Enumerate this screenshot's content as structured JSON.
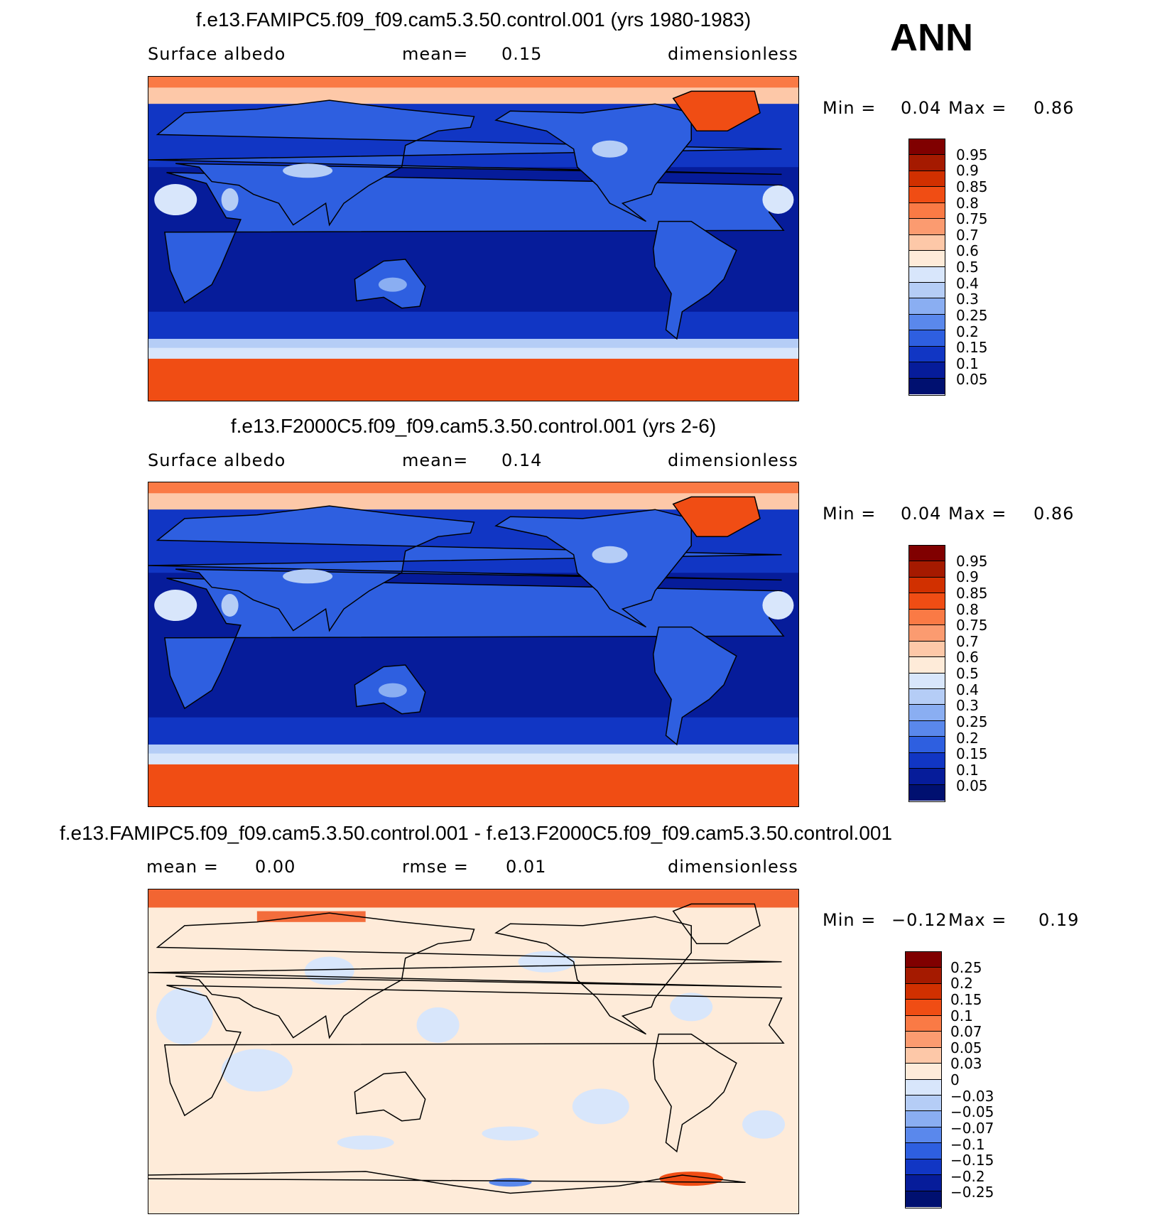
{
  "season": "ANN",
  "panels": [
    {
      "title": "f.e13.FAMIPC5.f09_f09.cam5.3.50.control.001 (yrs 1980-1983)",
      "left_label": "Surface  albedo",
      "mid_label": "mean=",
      "mid_value": "0.15",
      "right_label": "dimensionless",
      "min_label": "Min  =",
      "min_value": "0.04",
      "max_label": "Max  =",
      "max_value": "0.86",
      "colorbar_labels": [
        "0.95",
        "0.9",
        "0.85",
        "0.8",
        "0.75",
        "0.7",
        "0.6",
        "0.5",
        "0.4",
        "0.3",
        "0.25",
        "0.2",
        "0.15",
        "0.1",
        "0.05"
      ]
    },
    {
      "title": "f.e13.F2000C5.f09_f09.cam5.3.50.control.001 (yrs 2-6)",
      "left_label": "Surface  albedo",
      "mid_label": "mean=",
      "mid_value": "0.14",
      "right_label": "dimensionless",
      "min_label": "Min  =",
      "min_value": "0.04",
      "max_label": "Max  =",
      "max_value": "0.86",
      "colorbar_labels": [
        "0.95",
        "0.9",
        "0.85",
        "0.8",
        "0.75",
        "0.7",
        "0.6",
        "0.5",
        "0.4",
        "0.3",
        "0.25",
        "0.2",
        "0.15",
        "0.1",
        "0.05"
      ]
    },
    {
      "title": "f.e13.FAMIPC5.f09_f09.cam5.3.50.control.001 - f.e13.F2000C5.f09_f09.cam5.3.50.control.001",
      "left_label": "mean  =",
      "left_value": "0.00",
      "mid_label": "rmse  =",
      "mid_value": "0.01",
      "right_label": "dimensionless",
      "min_label": "Min  =",
      "min_value": "−0.12",
      "max_label": "Max  =",
      "max_value": "0.19",
      "colorbar_labels": [
        "0.25",
        "0.2",
        "0.15",
        "0.1",
        "0.07",
        "0.05",
        "0.03",
        "0",
        "−0.03",
        "−0.05",
        "−0.07",
        "−0.1",
        "−0.15",
        "−0.2",
        "−0.25"
      ]
    }
  ],
  "colors": {
    "abs_scale": [
      "#800000",
      "#a51a00",
      "#d13000",
      "#f04d14",
      "#fa7a45",
      "#fb9b70",
      "#fdc8a8",
      "#feebd9",
      "#d8e6fb",
      "#b5cdf6",
      "#8aaef2",
      "#5a88ec",
      "#2e5fe0",
      "#1136c4",
      "#061c9a",
      "#001070"
    ],
    "diff_scale": [
      "#800000",
      "#a51a00",
      "#d13000",
      "#f04d14",
      "#fa7a45",
      "#fb9b70",
      "#fdc8a8",
      "#feebd9",
      "#d8e6fb",
      "#b5cdf6",
      "#8aaef2",
      "#5a88ec",
      "#2e5fe0",
      "#1136c4",
      "#061c9a",
      "#001070"
    ],
    "ocean_trop": "#061c9a",
    "ocean_mid": "#1136c4",
    "sea_ice": "#b5cdf6",
    "antarctica": "#f04d14",
    "greenland": "#f04d14",
    "land": "#2e5fe0",
    "desert": "#d8e6fb",
    "diff_base_pos": "#feebd9",
    "diff_base_neg": "#d8e6fb",
    "diff_strong": "#f04d14"
  }
}
